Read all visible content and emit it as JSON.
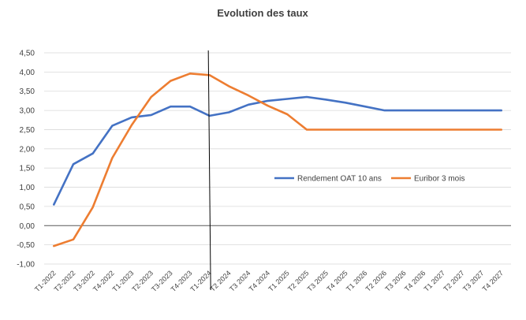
{
  "chart_data": {
    "type": "line",
    "title": "Evolution des taux",
    "xlabel": "",
    "ylabel": "",
    "ylim": [
      -1.0,
      4.5
    ],
    "y_ticks": [
      "-1,00",
      "-0,50",
      "0,00",
      "0,50",
      "1,00",
      "1,50",
      "2,00",
      "2,50",
      "3,00",
      "3,50",
      "4,00",
      "4,50"
    ],
    "grid": true,
    "legend_position": "right",
    "categories": [
      "T1-2022",
      "T2-2022",
      "T3-2022",
      "T4-2022",
      "T1-2023",
      "T2-2023",
      "T3-2023",
      "T4-2023",
      "T1-2024",
      "T2 2024",
      "T3 2024",
      "T4 2024",
      "T1 2025",
      "T2 2025",
      "T3 2025",
      "T4 2025",
      "T1 2026",
      "T2 2026",
      "T3 2026",
      "T4 2026",
      "T1 2027",
      "T2 2027",
      "T3 2027",
      "T4 2027"
    ],
    "series": [
      {
        "name": "Rendement OAT 10 ans",
        "color": "#4472C4",
        "values": [
          0.55,
          1.6,
          1.88,
          2.6,
          2.82,
          2.88,
          3.1,
          3.1,
          2.86,
          2.95,
          3.15,
          3.25,
          3.3,
          3.35,
          3.28,
          3.2,
          3.1,
          3.0,
          3.0,
          3.0,
          3.0,
          3.0,
          3.0,
          3.0
        ]
      },
      {
        "name": "Euribor 3 mois",
        "color": "#ED7D31",
        "values": [
          -0.53,
          -0.36,
          0.48,
          1.76,
          2.62,
          3.35,
          3.77,
          3.96,
          3.92,
          3.63,
          3.39,
          3.12,
          2.9,
          2.5,
          2.5,
          2.5,
          2.5,
          2.5,
          2.5,
          2.5,
          2.5,
          2.5,
          2.5,
          2.5
        ]
      }
    ],
    "vertical_marker_index": 8.5
  }
}
